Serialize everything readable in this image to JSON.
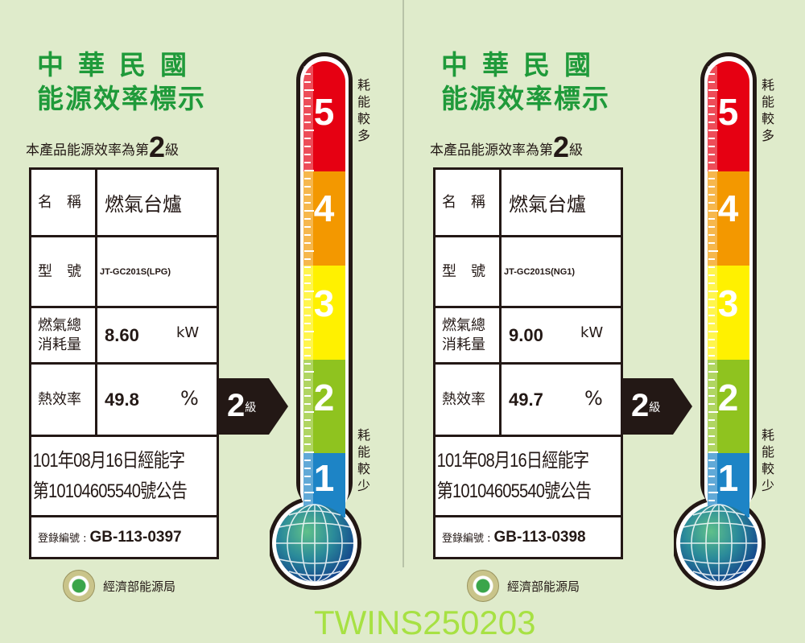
{
  "labels": [
    {
      "title_line1": "中華民國",
      "title_line2": "能源效率標示",
      "grade_prefix": "本產品能源效率為第",
      "grade": "2",
      "grade_suffix": "級",
      "name_label": "名　稱",
      "name_value": "燃氣台爐",
      "model_label": "型　號",
      "model_value": "JT-GC201S(LPG)",
      "consumption_label": "燃氣總消耗量",
      "consumption_value": "8.60",
      "consumption_unit": "kW",
      "efficiency_label": "熱效率",
      "efficiency_value": "49.8",
      "efficiency_unit": "%",
      "notice_line1": "101年08月16日經能字",
      "notice_line2": "第10104605540號公告",
      "reg_label": "登錄編號 :",
      "reg_value": "GB-113-0397",
      "bureau": "經濟部能源局",
      "arrow_grade": "2",
      "arrow_suffix": "級",
      "side_top": "耗能較多",
      "side_bottom": "耗能較少",
      "scale": [
        "5",
        "4",
        "3",
        "2",
        "1"
      ]
    },
    {
      "title_line1": "中華民國",
      "title_line2": "能源效率標示",
      "grade_prefix": "本產品能源效率為第",
      "grade": "2",
      "grade_suffix": "級",
      "name_label": "名　稱",
      "name_value": "燃氣台爐",
      "model_label": "型　號",
      "model_value": "JT-GC201S(NG1)",
      "consumption_label": "燃氣總消耗量",
      "consumption_value": "9.00",
      "consumption_unit": "kW",
      "efficiency_label": "熱效率",
      "efficiency_value": "49.7",
      "efficiency_unit": "%",
      "notice_line1": "101年08月16日經能字",
      "notice_line2": "第10104605540號公告",
      "reg_label": "登錄編號 :",
      "reg_value": "GB-113-0398",
      "bureau": "經濟部能源局",
      "arrow_grade": "2",
      "arrow_suffix": "級",
      "side_top": "耗能較多",
      "side_bottom": "耗能較少",
      "scale": [
        "5",
        "4",
        "3",
        "2",
        "1"
      ]
    }
  ],
  "colors": {
    "title": "#1f9a3a",
    "grade5": "#e60012",
    "grade4": "#f39800",
    "grade3": "#fff100",
    "grade2": "#8fc31f",
    "grade1": "#1d84c6",
    "background": "#dfebcb"
  },
  "watermark": "TWINS250203"
}
